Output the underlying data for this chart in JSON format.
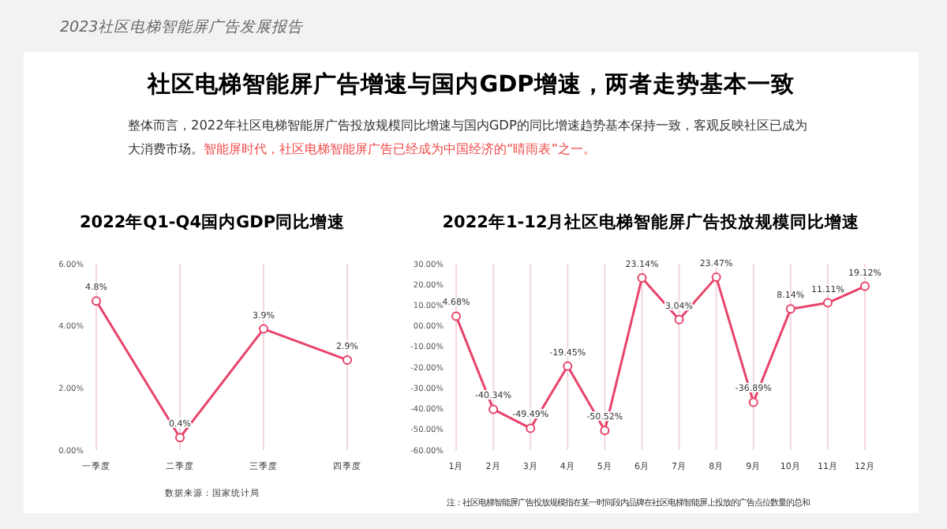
{
  "chart_data": [
    {
      "type": "line",
      "title": "2022年Q1-Q4国内GDP同比增速",
      "annotations": [
        "2023社区电梯智能屏广告发展报告",
        "社区电梯智能屏广告增速与国内GDP增速，两者走势基本一致",
        "整体而言，2022年社区电梯智能屏广告投放规模同比增速与国内GDP的同比增速趋势基本保持一致，客观反映社区已成为大消费市场。",
        "智能屏时代，社区电梯智能屏广告已经成为中国经济的“晴雨表”之一。",
        "数据来源：国家统计局"
      ],
      "categories": [
        "一季度",
        "二季度",
        "三季度",
        "四季度"
      ],
      "series": [
        {
          "color": "#e8436a",
          "values": [
            4.8,
            0.4,
            3.9,
            2.9
          ],
          "value_labels": [
            "4.8%",
            "0.4%",
            "3.9%",
            "2.9%"
          ]
        }
      ],
      "ylim": [
        0,
        6
      ],
      "yticks": [
        {
          "value": 0,
          "label": "0.00%"
        },
        {
          "value": 2,
          "label": "2.00%"
        },
        {
          "value": 4,
          "label": "4.00%"
        },
        {
          "value": 6,
          "label": "6.00%"
        }
      ],
      "grid": "x",
      "marker": "circle",
      "line_style": "solid",
      "legend": false
    },
    {
      "type": "line",
      "title": "2022年1-12月社区电梯智能屏广告投放规模同比增速",
      "annotations": [
        "注：社区电梯智能屏广告投放规模指在某一时间段内品牌在社区电梯智能屏上投放的广告点位数量的总和"
      ],
      "categories": [
        "1月",
        "2月",
        "3月",
        "4月",
        "5月",
        "6月",
        "7月",
        "8月",
        "9月",
        "10月",
        "11月",
        "12月"
      ],
      "series": [
        {
          "color": "#e8436a",
          "values": [
            4.68,
            -40.34,
            -49.49,
            -19.45,
            -50.52,
            23.14,
            3.04,
            23.47,
            -36.89,
            8.14,
            11.11,
            19.12
          ],
          "value_labels": [
            "4.68%",
            "-40.34%",
            "-49.49%",
            "-19.45%",
            "-50.52%",
            "23.14%",
            "3.04%",
            "23.47%",
            "-36.89%",
            "8.14%",
            "11.11%",
            "19.12%"
          ]
        }
      ],
      "ylim": [
        -60,
        30
      ],
      "yticks": [
        {
          "value": -60,
          "label": "-60.00%"
        },
        {
          "value": -50,
          "label": "-50.00%"
        },
        {
          "value": -40,
          "label": "-40.00%"
        },
        {
          "value": -30,
          "label": "-30.00%"
        },
        {
          "value": -20,
          "label": "-20.00%"
        },
        {
          "value": -10,
          "label": "-10.00%"
        },
        {
          "value": 0,
          "label": "00.00%"
        },
        {
          "value": 10,
          "label": "10.00%"
        },
        {
          "value": 20,
          "label": "20.00%"
        },
        {
          "value": 30,
          "label": "30.00%"
        }
      ],
      "grid": "x",
      "marker": "circle",
      "line_style": "solid",
      "legend": false
    }
  ]
}
